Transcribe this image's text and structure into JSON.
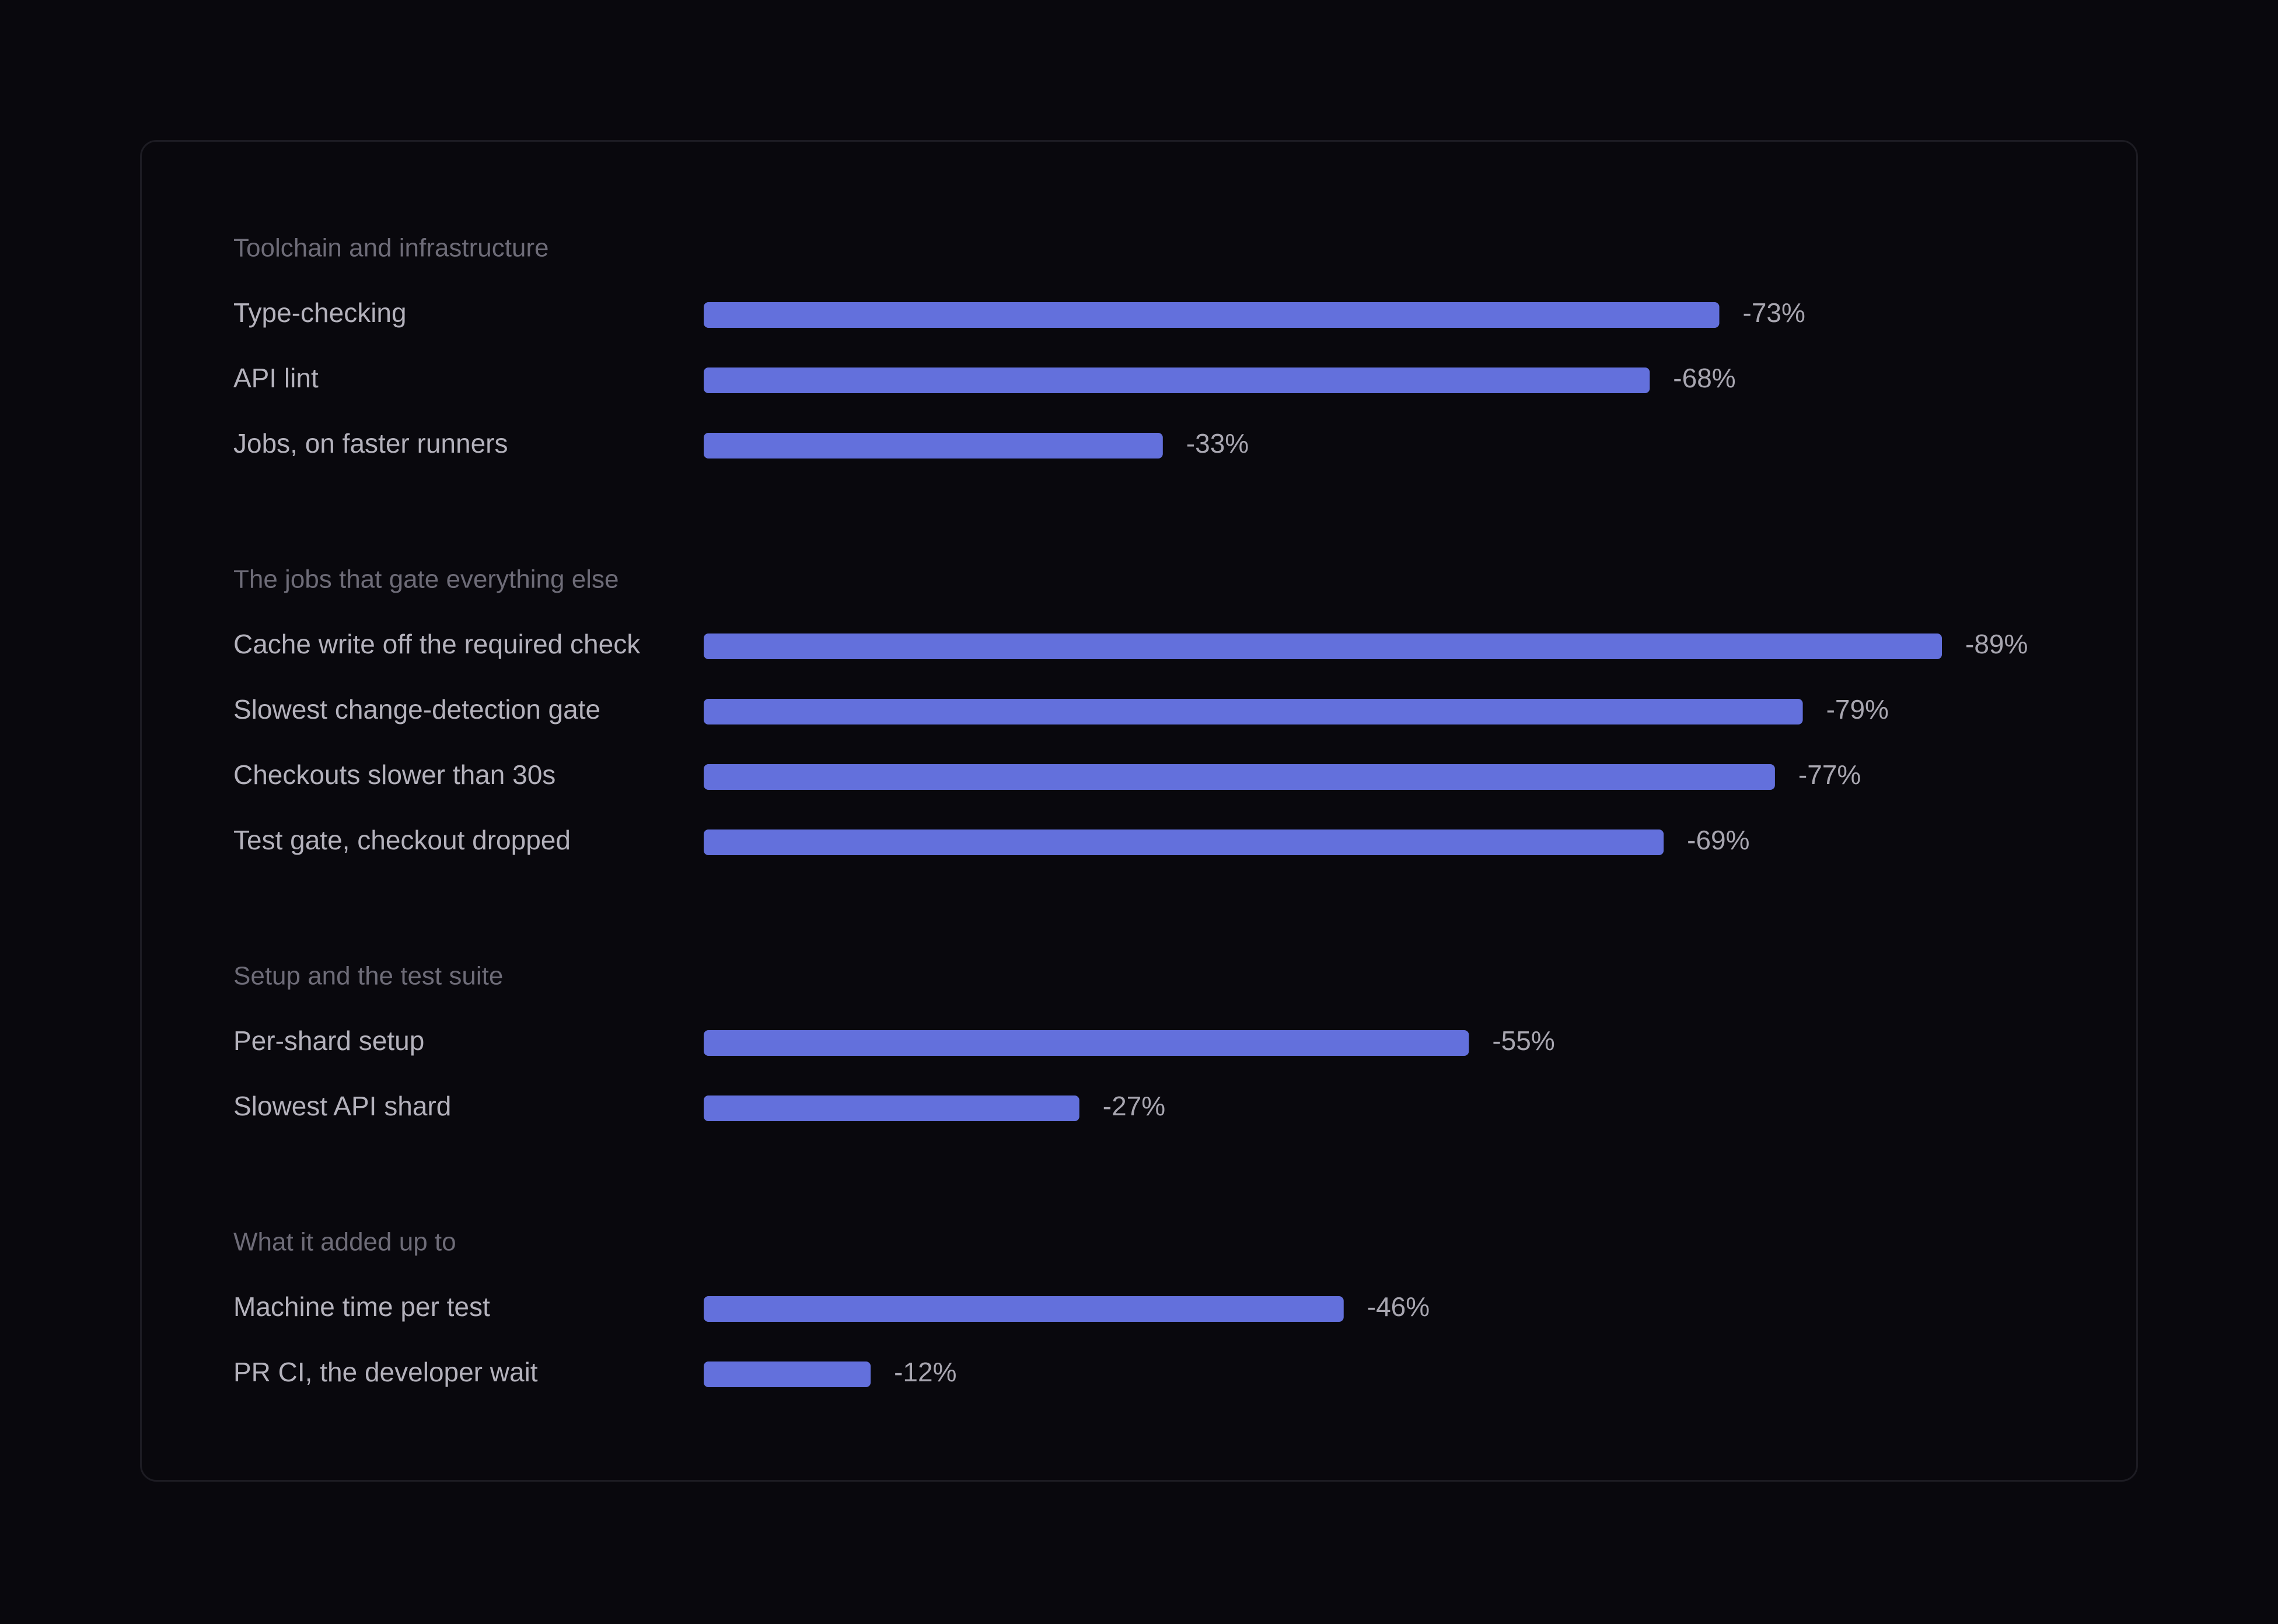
{
  "chart_data": {
    "type": "bar",
    "orientation": "horizontal",
    "xlim": [
      0,
      89
    ],
    "grid": false,
    "bar_color": "#6370dc",
    "groups": [
      {
        "title": "Toolchain and infrastructure",
        "items": [
          {
            "label": "Type-checking",
            "value": -73,
            "display": "-73%"
          },
          {
            "label": "API lint",
            "value": -68,
            "display": "-68%"
          },
          {
            "label": "Jobs, on faster runners",
            "value": -33,
            "display": "-33%"
          }
        ]
      },
      {
        "title": "The jobs that gate everything else",
        "items": [
          {
            "label": "Cache write off the required check",
            "value": -89,
            "display": "-89%"
          },
          {
            "label": "Slowest change-detection gate",
            "value": -79,
            "display": "-79%"
          },
          {
            "label": "Checkouts slower than 30s",
            "value": -77,
            "display": "-77%"
          },
          {
            "label": "Test gate, checkout dropped",
            "value": -69,
            "display": "-69%"
          }
        ]
      },
      {
        "title": "Setup and the test suite",
        "items": [
          {
            "label": "Per-shard setup",
            "value": -55,
            "display": "-55%"
          },
          {
            "label": "Slowest API shard",
            "value": -27,
            "display": "-27%"
          }
        ]
      },
      {
        "title": "What it added up to",
        "items": [
          {
            "label": "Machine time per test",
            "value": -46,
            "display": "-46%"
          },
          {
            "label": "PR CI, the developer wait",
            "value": -12,
            "display": "-12%"
          }
        ]
      }
    ]
  }
}
